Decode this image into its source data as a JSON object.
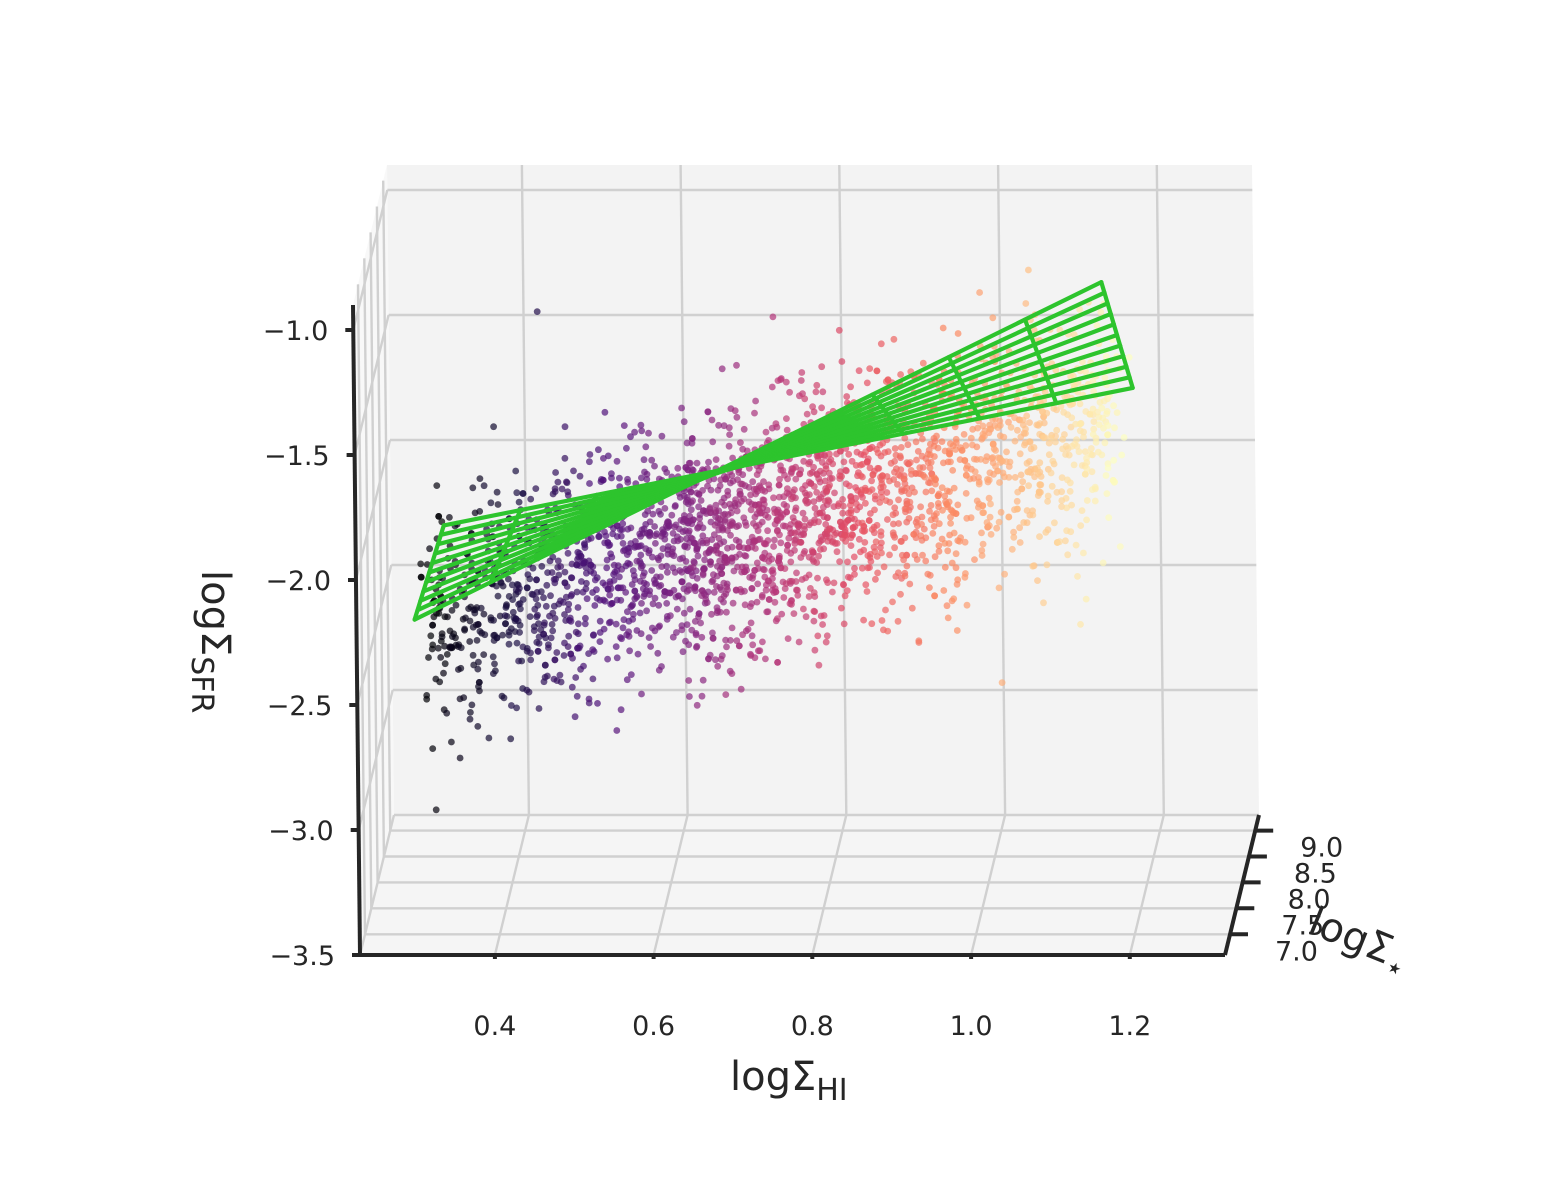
{
  "chart_data": {
    "type": "scatter",
    "projection": "3d",
    "title": "",
    "x_axis": {
      "label_main": "logΣ",
      "label_sub": "HI",
      "ticks": [
        "0.4",
        "0.6",
        "0.8",
        "1.0",
        "1.2"
      ],
      "tick_values": [
        0.4,
        0.6,
        0.8,
        1.0,
        1.2
      ],
      "range": [
        0.23,
        1.32
      ]
    },
    "y_axis": {
      "label_main": "logΣ",
      "label_sub": "⋆",
      "ticks": [
        "7.0",
        "7.5",
        "8.0",
        "8.5",
        "9.0"
      ],
      "tick_values": [
        7.0,
        7.5,
        8.0,
        8.5,
        9.0
      ],
      "range": [
        6.6,
        9.3
      ]
    },
    "z_axis": {
      "label_main": "logΣ",
      "label_sub": "SFR",
      "ticks": [
        "−3.5",
        "−3.0",
        "−2.5",
        "−2.0",
        "−1.5",
        "−1.0"
      ],
      "tick_values": [
        -3.5,
        -3.0,
        -2.5,
        -2.0,
        -1.5,
        -1.0
      ],
      "range": [
        -3.5,
        -0.9
      ]
    },
    "grid": true,
    "colormap": "magma",
    "color_by": "logΣ_HI",
    "colormap_stops": [
      "#000004",
      "#1c1044",
      "#4f127b",
      "#812581",
      "#b5367a",
      "#e55064",
      "#fb8761",
      "#fec287",
      "#fcfdbf"
    ],
    "point_color_range": [
      0.3,
      1.17
    ],
    "fit_plane": {
      "color": "#2dc42d",
      "description_values": {
        "x_range": [
          0.3,
          1.17
        ],
        "y_range": [
          6.8,
          9.1
        ],
        "corner_z": {
          "x_low_y_low": -2.2,
          "x_low_y_high": -2.3,
          "x_high_y_low": -0.85,
          "x_high_y_high": -1.75
        }
      },
      "x_divisions": 9,
      "y_divisions": 10
    },
    "point_cloud": {
      "count": 2600,
      "x_range": [
        0.3,
        1.17
      ],
      "y_center": 8.0,
      "relation": "z ≈ -2.45 + 0.9·(x − 0.3) with scatter σ≈0.22"
    }
  }
}
